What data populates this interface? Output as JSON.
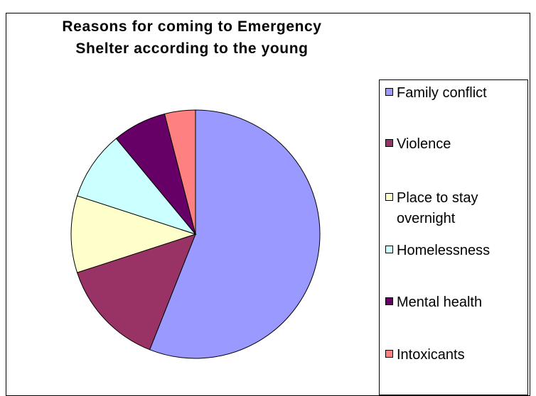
{
  "chart_data": {
    "type": "pie",
    "title_lines": [
      "Reasons for coming to Emergency",
      "Shelter according to the young"
    ],
    "slices": [
      {
        "label": "Family conflict",
        "value": 56,
        "color": "#9999FF"
      },
      {
        "label": "Violence",
        "value": 14,
        "color": "#993366"
      },
      {
        "label": "Place to stay overnight",
        "value": 10,
        "color": "#FFFFCC"
      },
      {
        "label": "Homelessness",
        "value": 9,
        "color": "#CCFFFF"
      },
      {
        "label": "Mental health",
        "value": 7,
        "color": "#660066"
      },
      {
        "label": "Intoxicants",
        "value": 4,
        "color": "#FF8080"
      }
    ],
    "legend_position": "right"
  }
}
